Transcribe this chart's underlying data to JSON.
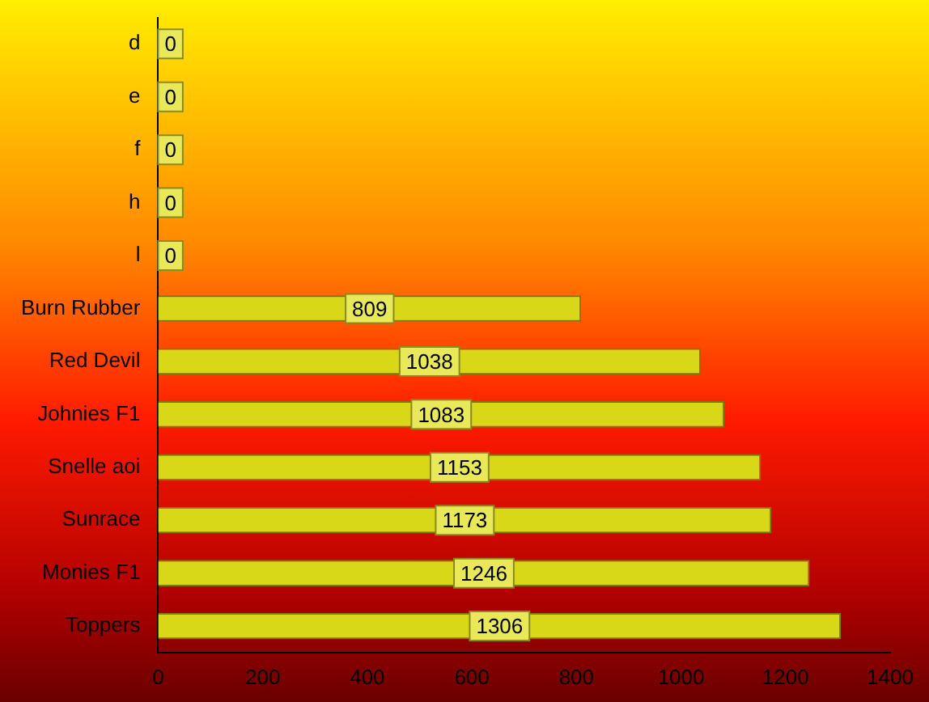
{
  "chart_data": {
    "type": "bar",
    "orientation": "horizontal",
    "categories": [
      "d",
      "e",
      "f",
      "h",
      "l",
      "Burn Rubber",
      "Red Devil",
      "Johnies F1",
      "Snelle aoi",
      "Sunrace",
      "Monies F1",
      "Toppers"
    ],
    "values": [
      0,
      0,
      0,
      0,
      0,
      809,
      1038,
      1083,
      1153,
      1173,
      1246,
      1306
    ],
    "color": "#d8d818",
    "xlim": [
      0,
      1400
    ],
    "xticks": [
      0,
      200,
      400,
      600,
      800,
      1000,
      1200,
      1400
    ],
    "grid": false,
    "legend": false,
    "data_labels": true
  }
}
